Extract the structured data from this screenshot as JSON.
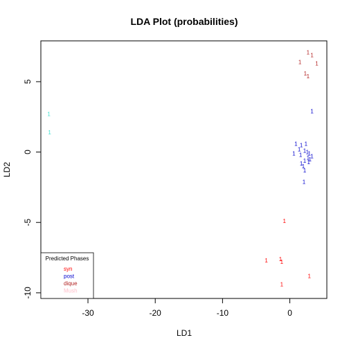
{
  "chart_data": {
    "type": "scatter",
    "title": "LDA Plot (probabilities)",
    "xlabel": "LD1",
    "ylabel": "LD2",
    "xlim": [
      -37,
      5.5
    ],
    "ylim": [
      -10.4,
      7.9
    ],
    "xticks": [
      -30,
      -20,
      -10,
      0
    ],
    "yticks": [
      -10,
      -5,
      0,
      5
    ],
    "point_label": "1",
    "legend": {
      "title": "Predicted Phases",
      "position": "bottom-left"
    },
    "series": [
      {
        "name": "syn",
        "color": "#ff0000",
        "points": [
          {
            "x": -0.8,
            "y": -4.9
          },
          {
            "x": -3.5,
            "y": -7.7
          },
          {
            "x": -1.4,
            "y": -7.6
          },
          {
            "x": -1.2,
            "y": -7.8
          },
          {
            "x": 2.9,
            "y": -8.8
          },
          {
            "x": -1.2,
            "y": -9.4
          }
        ]
      },
      {
        "name": "post",
        "color": "#0000cd",
        "points": [
          {
            "x": 3.3,
            "y": 2.9
          },
          {
            "x": 0.9,
            "y": 0.6
          },
          {
            "x": 1.7,
            "y": 0.5
          },
          {
            "x": 2.4,
            "y": 0.6
          },
          {
            "x": 1.4,
            "y": 0.2
          },
          {
            "x": 2.2,
            "y": 0.1
          },
          {
            "x": 2.6,
            "y": 0.0
          },
          {
            "x": 0.6,
            "y": -0.1
          },
          {
            "x": 1.6,
            "y": -0.2
          },
          {
            "x": 2.9,
            "y": -0.1
          },
          {
            "x": 2.7,
            "y": -0.4
          },
          {
            "x": 3.3,
            "y": -0.3
          },
          {
            "x": 3.0,
            "y": -0.5
          },
          {
            "x": 2.2,
            "y": -0.6
          },
          {
            "x": 2.8,
            "y": -0.7
          },
          {
            "x": 1.7,
            "y": -0.8
          },
          {
            "x": 2.0,
            "y": -1.0
          },
          {
            "x": 2.2,
            "y": -1.3
          },
          {
            "x": 2.1,
            "y": -2.1
          }
        ]
      },
      {
        "name": "dique",
        "color": "#b22222",
        "points": [
          {
            "x": 2.7,
            "y": 7.1
          },
          {
            "x": 3.3,
            "y": 6.9
          },
          {
            "x": 1.5,
            "y": 6.4
          },
          {
            "x": 4.0,
            "y": 6.3
          },
          {
            "x": 2.3,
            "y": 5.6
          },
          {
            "x": 2.7,
            "y": 5.4
          }
        ]
      },
      {
        "name": "Mush",
        "color": "#ffc0cb",
        "points": []
      },
      {
        "name": "",
        "color": "#40e0d0",
        "points": [
          {
            "x": -35.8,
            "y": 2.7
          },
          {
            "x": -35.7,
            "y": 1.4
          }
        ]
      }
    ]
  }
}
